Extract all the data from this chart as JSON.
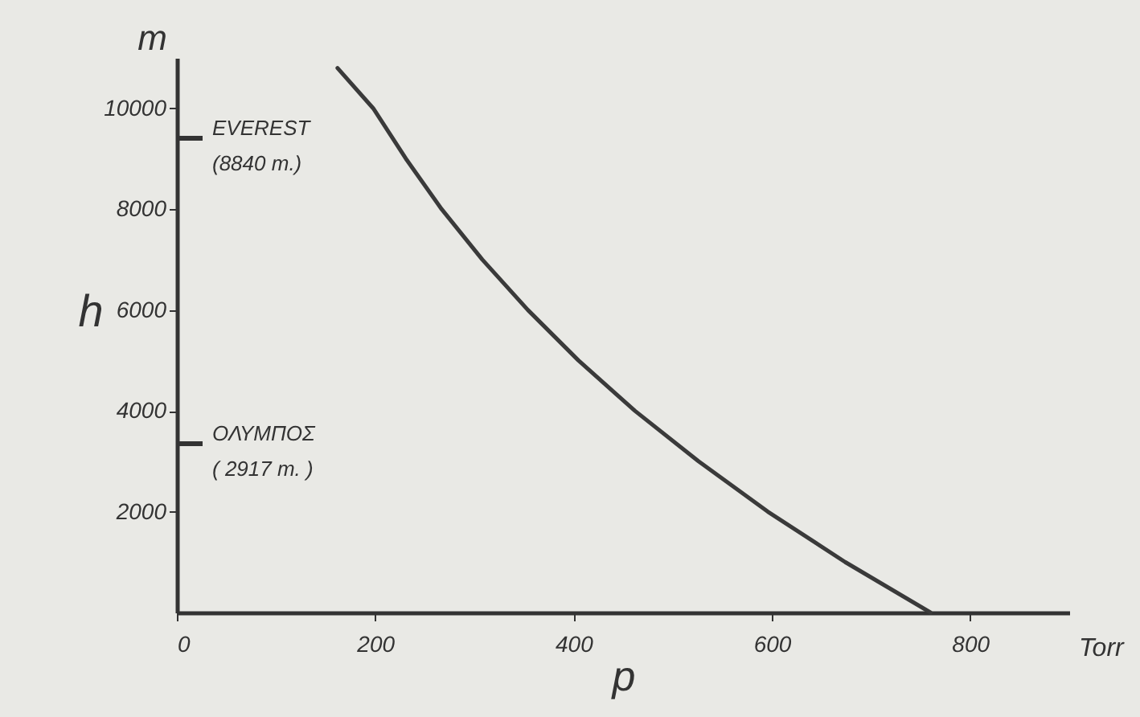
{
  "chart_data": {
    "type": "line",
    "x": [
      162,
      198,
      231,
      267,
      308,
      354,
      405,
      462,
      526,
      596,
      674,
      760
    ],
    "series": [
      {
        "color": "#3a3a3a",
        "values": [
          10800,
          10000,
          9000,
          8000,
          7000,
          6000,
          5000,
          4000,
          3000,
          2000,
          1000,
          0
        ]
      }
    ],
    "xlabel": "p",
    "ylabel": "h",
    "xlim": [
      0,
      900
    ],
    "ylim": [
      0,
      11000
    ],
    "xticks": [
      0,
      200,
      400,
      600,
      800
    ],
    "yticks": [
      2000,
      4000,
      6000,
      8000,
      10000
    ],
    "annotations": [
      "EVEREST\n(8840 m.)",
      "ΟΛΥΜΠΟΣ\n( 2917 m. )",
      "m",
      "Torr"
    ],
    "grid": false,
    "marker": "none",
    "line_style": "solid"
  }
}
